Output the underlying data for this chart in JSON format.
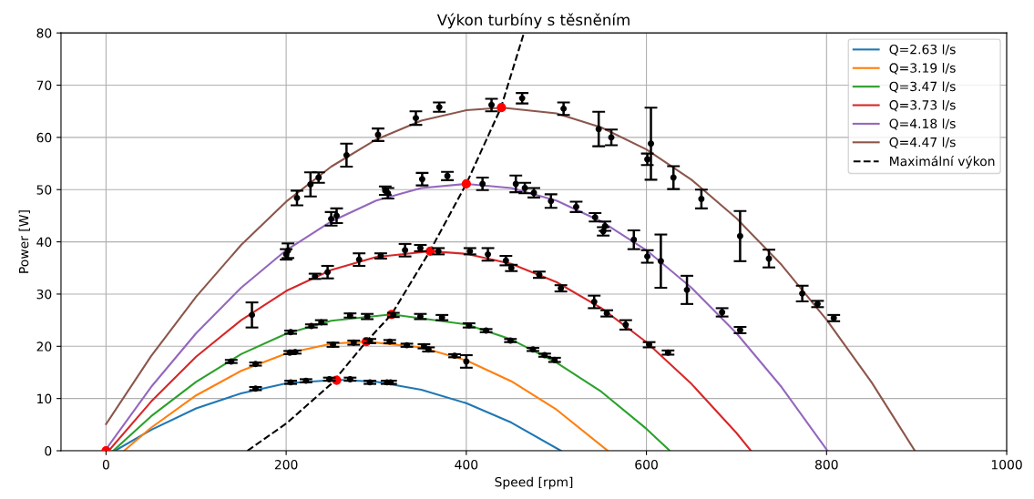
{
  "chart_data": {
    "type": "line",
    "title": "Výkon turbíny s těsněním",
    "xlabel": "Speed [rpm]",
    "ylabel": "Power [W]",
    "xlim": [
      -50,
      1000
    ],
    "xticks": [
      0,
      200,
      400,
      600,
      800,
      1000
    ],
    "ylim": [
      0,
      80
    ],
    "yticks": [
      0,
      10,
      20,
      30,
      40,
      50,
      60,
      70,
      80
    ],
    "grid": true,
    "legend": "top right",
    "series": [
      {
        "name": "Q=2.63 l/s",
        "color": "#1f77b4",
        "x": [
          10,
          50,
          100,
          150,
          200,
          257.5,
          300,
          350,
          400,
          450,
          505
        ],
        "values": [
          0,
          4.0,
          8.1,
          11.0,
          12.9,
          13.6,
          13.2,
          11.7,
          9.1,
          5.4,
          0
        ]
      },
      {
        "name": "Q=3.19 l/s",
        "color": "#ff7f0e",
        "x": [
          20,
          50,
          100,
          150,
          200,
          250,
          288.5,
          350,
          400,
          450,
          500,
          557
        ],
        "values": [
          0,
          4.4,
          10.6,
          15.3,
          18.6,
          20.5,
          20.9,
          19.8,
          17.3,
          13.3,
          7.9,
          0
        ]
      },
      {
        "name": "Q=3.47 l/s",
        "color": "#2ca02c",
        "x": [
          8,
          50,
          100,
          150,
          200,
          250,
          317,
          400,
          450,
          500,
          550,
          600,
          626
        ],
        "values": [
          0,
          6.6,
          13.2,
          18.5,
          22.4,
          24.9,
          26.1,
          24.2,
          21.3,
          16.9,
          11.3,
          4.2,
          0
        ]
      },
      {
        "name": "Q=3.73 l/s",
        "color": "#d62728",
        "x": [
          3,
          50,
          100,
          150,
          200,
          250,
          300,
          359.5,
          400,
          450,
          500,
          550,
          600,
          650,
          700,
          716
        ],
        "values": [
          0,
          9.4,
          18.0,
          25.0,
          30.6,
          34.6,
          37.1,
          38.2,
          37.7,
          35.8,
          32.3,
          27.3,
          20.8,
          12.8,
          3.4,
          0
        ]
      },
      {
        "name": "Q=4.18 l/s",
        "color": "#9467bd",
        "x": [
          0,
          50,
          100,
          150,
          200,
          250,
          300,
          350,
          400,
          450,
          500,
          550,
          600,
          650,
          700,
          750,
          801
        ],
        "values": [
          0.3,
          12.2,
          22.5,
          31.2,
          38.4,
          43.9,
          47.9,
          50.3,
          51.1,
          50.3,
          47.9,
          43.9,
          38.4,
          31.2,
          22.5,
          12.2,
          0
        ]
      },
      {
        "name": "Q=4.47 l/s",
        "color": "#8c564b",
        "x": [
          0,
          50,
          100,
          150,
          200,
          250,
          300,
          350,
          400,
          440,
          500,
          550,
          600,
          650,
          700,
          750,
          800,
          850,
          898
        ],
        "values": [
          5.1,
          18.1,
          29.5,
          39.4,
          47.7,
          54.4,
          59.6,
          63.2,
          65.2,
          65.7,
          64.6,
          61.9,
          57.7,
          51.9,
          44.5,
          35.6,
          25.1,
          13.1,
          0
        ]
      },
      {
        "name": "Maximální výkon",
        "color": "#000000",
        "line_style": "dashed",
        "x": [
          157,
          200,
          250,
          289,
          317,
          359.5,
          400,
          438.5,
          464
        ],
        "values": [
          0,
          5.2,
          12.8,
          20.9,
          26.1,
          38.2,
          51.1,
          65.7,
          80
        ]
      },
      {
        "type": "scatter",
        "color": "#ff0000",
        "marker": "circle",
        "x": [
          0,
          256,
          289,
          317,
          360,
          400,
          439
        ],
        "values": [
          0,
          13.5,
          20.9,
          26.1,
          38.2,
          51.1,
          65.7
        ]
      },
      {
        "type": "scatter",
        "color": "#000000",
        "marker": "circle",
        "x": [
          166,
          205,
          222,
          248,
          271,
          293,
          312,
          316
        ],
        "values": [
          11.9,
          13.1,
          13.4,
          13.7,
          13.7,
          13.1,
          13.1,
          13.1
        ],
        "errors": [
          0.3,
          0.3,
          0.3,
          0.3,
          0.3,
          0.3,
          0.3,
          0.3
        ]
      },
      {
        "type": "scatter",
        "color": "#000000",
        "marker": "circle",
        "x": [
          166,
          204,
          210,
          252,
          275,
          293,
          315,
          334,
          353,
          358,
          387,
          400
        ],
        "values": [
          16.6,
          18.8,
          18.9,
          20.3,
          20.7,
          21.0,
          20.9,
          20.2,
          20.0,
          19.4,
          18.2,
          17.1
        ],
        "errors": [
          0.3,
          0.3,
          0.3,
          0.4,
          0.4,
          0.4,
          0.3,
          0.3,
          0.4,
          0.4,
          0.3,
          1.2
        ]
      },
      {
        "type": "scatter",
        "color": "#000000",
        "marker": "circle",
        "x": [
          139,
          205,
          228,
          239,
          271,
          290,
          319,
          349,
          373,
          403,
          422,
          449,
          474,
          487,
          498
        ],
        "values": [
          17.1,
          22.7,
          23.9,
          24.6,
          25.9,
          25.7,
          26.0,
          25.7,
          25.5,
          24.0,
          23.0,
          21.1,
          19.4,
          18.3,
          17.4
        ],
        "errors": [
          0.3,
          0.3,
          0.3,
          0.4,
          0.4,
          0.5,
          0.4,
          0.5,
          0.5,
          0.4,
          0.3,
          0.3,
          0.3,
          0.3,
          0.4
        ]
      },
      {
        "type": "scatter",
        "color": "#000000",
        "marker": "circle",
        "x": [
          162,
          232,
          246,
          281,
          305,
          332,
          349,
          369,
          404,
          424,
          444,
          450,
          481,
          505,
          542,
          556,
          577,
          603,
          624
        ],
        "values": [
          26.0,
          33.4,
          34.2,
          36.6,
          37.3,
          38.4,
          38.8,
          38.2,
          38.2,
          37.6,
          36.4,
          35.0,
          33.7,
          31.1,
          28.5,
          26.3,
          24.1,
          20.3,
          18.8
        ],
        "errors": [
          2.4,
          0.5,
          1.2,
          1.2,
          0.5,
          1.2,
          0.6,
          0.6,
          0.6,
          1.2,
          0.9,
          0.6,
          0.6,
          0.6,
          1.2,
          0.6,
          0.9,
          0.5,
          0.4
        ]
      },
      {
        "type": "scatter",
        "color": "#000000",
        "marker": "circle",
        "x": [
          200,
          202,
          250,
          256,
          310,
          313,
          351,
          379,
          418,
          455,
          465,
          475,
          494,
          522,
          543,
          552,
          554,
          586,
          601,
          616,
          645,
          684,
          704
        ],
        "values": [
          37.6,
          38.3,
          44.4,
          45.0,
          49.8,
          49.3,
          52.0,
          52.6,
          51.1,
          51.1,
          50.3,
          49.4,
          47.8,
          46.7,
          44.7,
          42.0,
          43.0,
          40.4,
          37.2,
          36.3,
          30.8,
          26.5,
          23.1
        ],
        "errors": [
          1.0,
          1.4,
          1.3,
          1.4,
          0.8,
          1.0,
          1.2,
          0.8,
          1.2,
          1.6,
          1.0,
          0.9,
          1.3,
          1.0,
          0.8,
          0.8,
          0.9,
          1.8,
          1.2,
          5.1,
          2.7,
          0.8,
          0.6
        ]
      },
      {
        "type": "scatter",
        "color": "#000000",
        "marker": "circle",
        "x": [
          212,
          227,
          236,
          267,
          302,
          344,
          370,
          428,
          462,
          508,
          547,
          561,
          601,
          605,
          630,
          661,
          704,
          736,
          773,
          790,
          808
        ],
        "values": [
          48.4,
          51.0,
          52.3,
          56.6,
          60.5,
          63.7,
          65.8,
          66.2,
          67.5,
          65.5,
          61.6,
          60.0,
          55.8,
          58.8,
          52.3,
          48.2,
          41.1,
          36.8,
          30.1,
          28.1,
          25.4
        ],
        "errors": [
          1.4,
          2.3,
          1.0,
          2.2,
          1.2,
          1.3,
          0.9,
          1.2,
          1.0,
          1.2,
          3.3,
          1.5,
          1.1,
          6.9,
          2.2,
          1.8,
          4.8,
          1.7,
          1.5,
          0.6,
          0.6
        ]
      }
    ]
  }
}
